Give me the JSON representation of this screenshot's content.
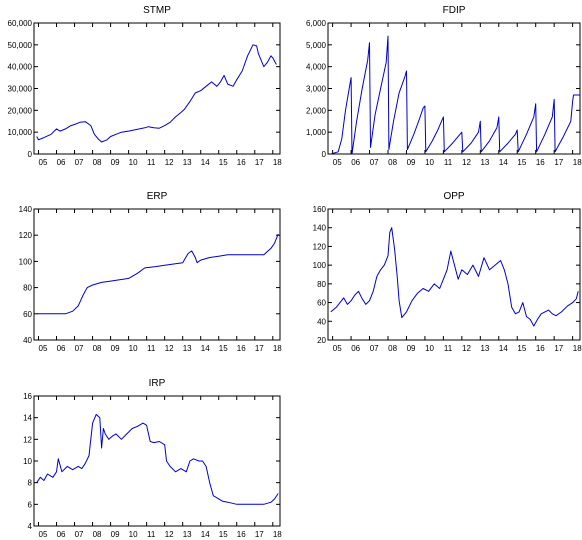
{
  "chart_data": [
    {
      "type": "line",
      "title": "STMP",
      "x_tick_labels": [
        "05",
        "06",
        "07",
        "08",
        "09",
        "10",
        "11",
        "12",
        "13",
        "14",
        "15",
        "16",
        "17",
        "18"
      ],
      "ylim": [
        0,
        60000
      ],
      "y_ticks": [
        0,
        10000,
        20000,
        30000,
        40000,
        50000,
        60000
      ],
      "y_tick_labels": [
        "0",
        "10,000",
        "20,000",
        "30,000",
        "40,000",
        "50,000",
        "60,000"
      ],
      "series": [
        {
          "x": [
            2004.9,
            2005.0,
            2005.3,
            2005.7,
            2006.0,
            2006.2,
            2006.5,
            2006.8,
            2007.0,
            2007.3,
            2007.6,
            2007.9,
            2008.1,
            2008.3,
            2008.5,
            2008.8,
            2009.0,
            2009.3,
            2009.6,
            2010.0,
            2010.3,
            2010.6,
            2010.9,
            2011.1,
            2011.4,
            2011.7,
            2012.0,
            2012.3,
            2012.6,
            2012.9,
            2013.1,
            2013.4,
            2013.7,
            2014.0,
            2014.3,
            2014.6,
            2014.9,
            2015.1,
            2015.3,
            2015.5,
            2015.8,
            2016.0,
            2016.3,
            2016.6,
            2016.9,
            2017.1,
            2017.2,
            2017.4,
            2017.5,
            2017.7,
            2017.9,
            2018.0,
            2018.2
          ],
          "values": [
            8000,
            6500,
            7500,
            9000,
            11500,
            10500,
            11500,
            13000,
            13500,
            14500,
            14800,
            13000,
            9000,
            7000,
            5500,
            6500,
            8000,
            9000,
            10000,
            10500,
            11000,
            11500,
            12000,
            12500,
            12000,
            11800,
            13000,
            14500,
            17000,
            19000,
            20500,
            24000,
            28000,
            29000,
            31000,
            33000,
            31000,
            33000,
            36000,
            32000,
            31000,
            34000,
            38000,
            45000,
            50000,
            49500,
            46000,
            42000,
            40000,
            42000,
            45000,
            44000,
            41000
          ]
        }
      ]
    },
    {
      "type": "line",
      "title": "FDIP",
      "x_tick_labels": [
        "05",
        "06",
        "07",
        "08",
        "09",
        "10",
        "11",
        "12",
        "13",
        "14",
        "15",
        "16",
        "17",
        "18"
      ],
      "ylim": [
        0,
        6000
      ],
      "y_ticks": [
        0,
        1000,
        2000,
        3000,
        4000,
        5000,
        6000
      ],
      "y_tick_labels": [
        "0",
        "1,000",
        "2,000",
        "3,000",
        "4,000",
        "5,000",
        "6,000"
      ],
      "series": [
        {
          "x": [
            2004.9,
            2005.3,
            2005.5,
            2005.7,
            2005.9,
            2006.0,
            2006.05,
            2006.3,
            2006.6,
            2006.9,
            2007.0,
            2007.05,
            2007.3,
            2007.6,
            2007.9,
            2008.0,
            2008.05,
            2008.3,
            2008.6,
            2008.9,
            2009.0,
            2009.05,
            2009.4,
            2009.7,
            2009.9,
            2010.0,
            2010.05,
            2010.4,
            2010.7,
            2010.9,
            2011.0,
            2011.05,
            2011.5,
            2011.9,
            2012.0,
            2012.05,
            2012.5,
            2012.9,
            2013.0,
            2013.05,
            2013.5,
            2013.9,
            2014.0,
            2014.05,
            2014.5,
            2014.9,
            2015.0,
            2015.05,
            2015.5,
            2015.9,
            2016.0,
            2016.05,
            2016.5,
            2016.9,
            2017.0,
            2017.05,
            2017.5,
            2017.9,
            2018.0,
            2018.05,
            2018.4
          ],
          "values": [
            0,
            100,
            700,
            2000,
            3000,
            3500,
            0,
            1500,
            3000,
            4300,
            5100,
            300,
            1800,
            3000,
            4200,
            5400,
            200,
            1500,
            2800,
            3500,
            3800,
            200,
            900,
            1600,
            2100,
            2200,
            100,
            600,
            1100,
            1500,
            1700,
            100,
            500,
            900,
            1000,
            100,
            500,
            1000,
            1500,
            100,
            600,
            1200,
            1700,
            100,
            500,
            900,
            1100,
            100,
            900,
            1700,
            2300,
            100,
            900,
            1700,
            2500,
            100,
            800,
            1500,
            2400,
            2700,
            2700
          ]
        }
      ]
    },
    {
      "type": "line",
      "title": "ERP",
      "x_tick_labels": [
        "05",
        "06",
        "07",
        "08",
        "09",
        "10",
        "11",
        "12",
        "13",
        "14",
        "15",
        "16",
        "17",
        "18"
      ],
      "ylim": [
        40,
        140
      ],
      "y_ticks": [
        40,
        60,
        80,
        100,
        120,
        140
      ],
      "y_tick_labels": [
        "40",
        "60",
        "80",
        "100",
        "120",
        "140"
      ],
      "series": [
        {
          "x": [
            2004.9,
            2005.5,
            2006.0,
            2006.5,
            2006.9,
            2007.2,
            2007.5,
            2007.7,
            2008.0,
            2008.5,
            2009.0,
            2009.5,
            2010.0,
            2010.5,
            2010.9,
            2011.5,
            2012.0,
            2012.5,
            2013.0,
            2013.3,
            2013.5,
            2013.7,
            2013.8,
            2014.0,
            2014.5,
            2015.0,
            2015.5,
            2016.0,
            2016.5,
            2017.0,
            2017.5,
            2017.9,
            2018.1,
            2018.3
          ],
          "values": [
            60,
            60,
            60,
            60,
            62,
            66,
            75,
            80,
            82,
            84,
            85,
            86,
            87,
            91,
            95,
            96,
            97,
            98,
            99,
            106,
            108,
            103,
            99,
            101,
            103,
            104,
            105,
            105,
            105,
            105,
            105,
            110,
            114,
            121
          ]
        }
      ]
    },
    {
      "type": "line",
      "title": "OPP",
      "x_tick_labels": [
        "05",
        "06",
        "07",
        "08",
        "09",
        "10",
        "11",
        "12",
        "13",
        "14",
        "15",
        "16",
        "17",
        "18"
      ],
      "ylim": [
        20,
        160
      ],
      "y_ticks": [
        20,
        40,
        60,
        80,
        100,
        120,
        140,
        160
      ],
      "y_tick_labels": [
        "20",
        "40",
        "60",
        "80",
        "100",
        "120",
        "140",
        "160"
      ],
      "series": [
        {
          "x": [
            2004.9,
            2005.2,
            2005.4,
            2005.6,
            2005.8,
            2006.0,
            2006.2,
            2006.4,
            2006.6,
            2006.8,
            2007.0,
            2007.2,
            2007.4,
            2007.6,
            2007.8,
            2008.0,
            2008.1,
            2008.2,
            2008.35,
            2008.5,
            2008.6,
            2008.75,
            2009.0,
            2009.3,
            2009.6,
            2009.9,
            2010.2,
            2010.5,
            2010.8,
            2011.0,
            2011.2,
            2011.4,
            2011.6,
            2011.8,
            2012.0,
            2012.3,
            2012.6,
            2012.9,
            2013.2,
            2013.5,
            2013.8,
            2014.1,
            2014.3,
            2014.5,
            2014.7,
            2014.9,
            2015.1,
            2015.3,
            2015.5,
            2015.7,
            2015.9,
            2016.1,
            2016.3,
            2016.5,
            2016.7,
            2016.9,
            2017.1,
            2017.4,
            2017.7,
            2018.0,
            2018.2,
            2018.3
          ],
          "values": [
            50,
            55,
            60,
            65,
            58,
            62,
            68,
            72,
            64,
            58,
            62,
            72,
            88,
            95,
            100,
            110,
            135,
            140,
            118,
            88,
            62,
            44,
            50,
            62,
            70,
            75,
            72,
            80,
            75,
            85,
            95,
            115,
            100,
            85,
            95,
            90,
            100,
            88,
            108,
            95,
            100,
            105,
            95,
            80,
            55,
            48,
            50,
            60,
            45,
            42,
            35,
            42,
            48,
            50,
            52,
            48,
            46,
            50,
            56,
            60,
            64,
            72
          ]
        }
      ]
    },
    {
      "type": "line",
      "title": "IRP",
      "x_tick_labels": [
        "05",
        "06",
        "07",
        "08",
        "09",
        "10",
        "11",
        "12",
        "13",
        "14",
        "15",
        "16",
        "17",
        "18"
      ],
      "ylim": [
        4,
        16
      ],
      "y_ticks": [
        4,
        6,
        8,
        10,
        12,
        14,
        16
      ],
      "y_tick_labels": [
        "4",
        "6",
        "8",
        "10",
        "12",
        "14",
        "16"
      ],
      "series": [
        {
          "x": [
            2004.9,
            2005.1,
            2005.3,
            2005.5,
            2005.8,
            2006.0,
            2006.1,
            2006.3,
            2006.6,
            2006.9,
            2007.2,
            2007.4,
            2007.6,
            2007.8,
            2008.0,
            2008.2,
            2008.4,
            2008.5,
            2008.6,
            2008.7,
            2008.9,
            2009.1,
            2009.3,
            2009.6,
            2009.9,
            2010.2,
            2010.5,
            2010.8,
            2011.0,
            2011.2,
            2011.4,
            2011.7,
            2012.0,
            2012.1,
            2012.3,
            2012.6,
            2012.9,
            2013.2,
            2013.4,
            2013.6,
            2013.9,
            2014.1,
            2014.3,
            2014.5,
            2014.7,
            2014.9,
            2015.0,
            2015.2,
            2015.5,
            2016.0,
            2016.5,
            2017.0,
            2017.5,
            2017.9,
            2018.1,
            2018.3
          ],
          "values": [
            8.0,
            8.5,
            8.2,
            8.8,
            8.5,
            9.0,
            10.2,
            9.0,
            9.5,
            9.2,
            9.5,
            9.3,
            9.8,
            10.5,
            13.5,
            14.3,
            14.0,
            11.2,
            13.0,
            12.5,
            12.0,
            12.3,
            12.5,
            12.0,
            12.5,
            13.0,
            13.2,
            13.5,
            13.3,
            11.8,
            11.7,
            11.8,
            11.5,
            10.0,
            9.5,
            9.0,
            9.3,
            9.0,
            10.0,
            10.2,
            10.0,
            10.0,
            9.5,
            8.0,
            6.8,
            6.6,
            6.5,
            6.3,
            6.2,
            6.0,
            6.0,
            6.0,
            6.0,
            6.2,
            6.5,
            7.0
          ]
        }
      ]
    }
  ]
}
